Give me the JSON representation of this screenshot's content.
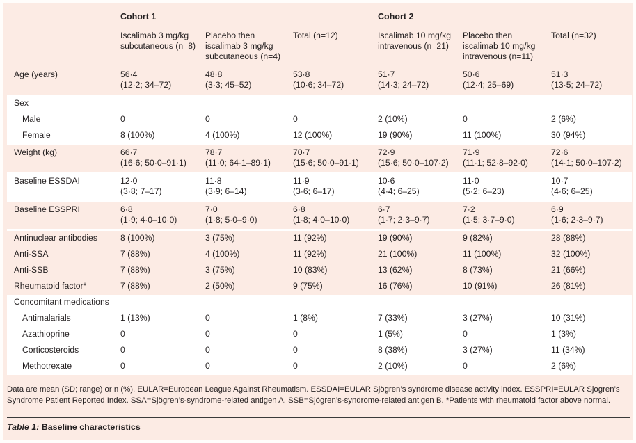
{
  "table": {
    "cohorts": [
      "Cohort 1",
      "Cohort 2"
    ],
    "subheaders": [
      "Iscalimab 3 mg/kg subcutaneous (n=8)",
      "Placebo then iscalimab 3 mg/kg subcutaneous (n=4)",
      "Total (n=12)",
      "Iscalimab 10 mg/kg intravenous (n=21)",
      "Placebo then iscalimab 10 mg/kg intravenous (n=11)",
      "Total (n=32)"
    ],
    "rows": [
      {
        "label": "Age (years)",
        "values": [
          [
            "56·4",
            "(12·2; 34–72)"
          ],
          [
            "48·8",
            "(3·3; 45–52)"
          ],
          [
            "53·8",
            "(10·6; 34–72)"
          ],
          [
            "51·7",
            "(14·3; 24–72)"
          ],
          [
            "50·6",
            "(12·4; 25–69)"
          ],
          [
            "51·3",
            "(13·5; 24–72)"
          ]
        ]
      },
      {
        "label": "Sex",
        "values": [
          [
            "",
            ""
          ],
          [
            "",
            ""
          ],
          [
            "",
            ""
          ],
          [
            "",
            ""
          ],
          [
            "",
            ""
          ],
          [
            "",
            ""
          ]
        ]
      },
      {
        "label": "Male",
        "values": [
          [
            "0",
            ""
          ],
          [
            "0",
            ""
          ],
          [
            "0",
            ""
          ],
          [
            "2 (10%)",
            ""
          ],
          [
            "0",
            ""
          ],
          [
            "2 (6%)",
            ""
          ]
        ]
      },
      {
        "label": "Female",
        "values": [
          [
            "8 (100%)",
            ""
          ],
          [
            "4 (100%)",
            ""
          ],
          [
            "12 (100%)",
            ""
          ],
          [
            "19 (90%)",
            ""
          ],
          [
            "11 (100%)",
            ""
          ],
          [
            "30 (94%)",
            ""
          ]
        ]
      },
      {
        "label": "Weight (kg)",
        "values": [
          [
            "66·7",
            "(16·6; 50·0–91·1)"
          ],
          [
            "78·7",
            "(11·0; 64·1–89·1)"
          ],
          [
            "70·7",
            "(15·6; 50·0–91·1)"
          ],
          [
            "72·9",
            "(15·6; 50·0–107·2)"
          ],
          [
            "71·9",
            "(11·1; 52·8–92·0)"
          ],
          [
            "72·6",
            "(14·1; 50·0–107·2)"
          ]
        ]
      },
      {
        "label": "Baseline ESSDAI",
        "values": [
          [
            "12·0",
            "(3·8; 7–17)"
          ],
          [
            "11·8",
            "(3·9; 6–14)"
          ],
          [
            "11·9",
            "(3·6; 6–17)"
          ],
          [
            "10·6",
            "(4·4; 6–25)"
          ],
          [
            "11·0",
            "(5·2; 6–23)"
          ],
          [
            "10·7",
            "(4·6; 6–25)"
          ]
        ]
      },
      {
        "label": "Baseline ESSPRI",
        "values": [
          [
            "6·8",
            "(1·9; 4·0–10·0)"
          ],
          [
            "7·0",
            "(1·8; 5·0–9·0)"
          ],
          [
            "6·8",
            "(1·8; 4·0–10·0)"
          ],
          [
            "6·7",
            "(1·7; 2·3–9·7)"
          ],
          [
            "7·2",
            "(1·5; 3·7–9·0)"
          ],
          [
            "6·9",
            "(1·6; 2·3–9·7)"
          ]
        ]
      },
      {
        "label": "Antinuclear antibodies",
        "values": [
          [
            "8 (100%)",
            ""
          ],
          [
            "3 (75%)",
            ""
          ],
          [
            "11 (92%)",
            ""
          ],
          [
            "19 (90%)",
            ""
          ],
          [
            "9 (82%)",
            ""
          ],
          [
            "28 (88%)",
            ""
          ]
        ]
      },
      {
        "label": "Anti-SSA",
        "values": [
          [
            "7 (88%)",
            ""
          ],
          [
            "4 (100%)",
            ""
          ],
          [
            "11 (92%)",
            ""
          ],
          [
            "21 (100%)",
            ""
          ],
          [
            "11 (100%)",
            ""
          ],
          [
            "32 (100%)",
            ""
          ]
        ]
      },
      {
        "label": "Anti-SSB",
        "values": [
          [
            "7 (88%)",
            ""
          ],
          [
            "3 (75%)",
            ""
          ],
          [
            "10 (83%)",
            ""
          ],
          [
            "13 (62%)",
            ""
          ],
          [
            "8 (73%)",
            ""
          ],
          [
            "21 (66%)",
            ""
          ]
        ]
      },
      {
        "label": "Rheumatoid factor*",
        "values": [
          [
            "7 (88%)",
            ""
          ],
          [
            "2 (50%)",
            ""
          ],
          [
            "9 (75%)",
            ""
          ],
          [
            "16 (76%)",
            ""
          ],
          [
            "10 (91%)",
            ""
          ],
          [
            "26 (81%)",
            ""
          ]
        ]
      },
      {
        "label": "Concomitant medications",
        "values": [
          [
            "",
            ""
          ],
          [
            "",
            ""
          ],
          [
            "",
            ""
          ],
          [
            "",
            ""
          ],
          [
            "",
            ""
          ],
          [
            "",
            ""
          ]
        ]
      },
      {
        "label": "Antimalarials",
        "values": [
          [
            "1 (13%)",
            ""
          ],
          [
            "0",
            ""
          ],
          [
            "1 (8%)",
            ""
          ],
          [
            "7 (33%)",
            ""
          ],
          [
            "3 (27%)",
            ""
          ],
          [
            "10 (31%)",
            ""
          ]
        ]
      },
      {
        "label": "Azathioprine",
        "values": [
          [
            "0",
            ""
          ],
          [
            "0",
            ""
          ],
          [
            "0",
            ""
          ],
          [
            "1 (5%)",
            ""
          ],
          [
            "0",
            ""
          ],
          [
            "1 (3%)",
            ""
          ]
        ]
      },
      {
        "label": "Corticosteroids",
        "values": [
          [
            "0",
            ""
          ],
          [
            "0",
            ""
          ],
          [
            "0",
            ""
          ],
          [
            "8 (38%)",
            ""
          ],
          [
            "3 (27%)",
            ""
          ],
          [
            "11 (34%)",
            ""
          ]
        ]
      },
      {
        "label": "Methotrexate",
        "values": [
          [
            "0",
            ""
          ],
          [
            "0",
            ""
          ],
          [
            "0",
            ""
          ],
          [
            "2 (10%)",
            ""
          ],
          [
            "0",
            ""
          ],
          [
            "2 (6%)",
            ""
          ]
        ]
      }
    ]
  },
  "footnote": "Data are mean (SD; range) or n (%). EULAR=European League Against Rheumatism. ESSDAI=EULAR Sjögren’s syndrome disease activity index. ESSPRI=EULAR Sjogren’s Syndrome Patient Reported Index. SSA=Sjögren’s-syndrome-related antigen A. SSB=Sjögren’s-syndrome-related antigen B. *Patients with rheumatoid factor above normal.",
  "caption": {
    "label": "Table 1:",
    "title": "Baseline characteristics"
  },
  "colors": {
    "band": "#fcebe4",
    "white": "#ffffff",
    "rule": "#3a3a3a"
  }
}
